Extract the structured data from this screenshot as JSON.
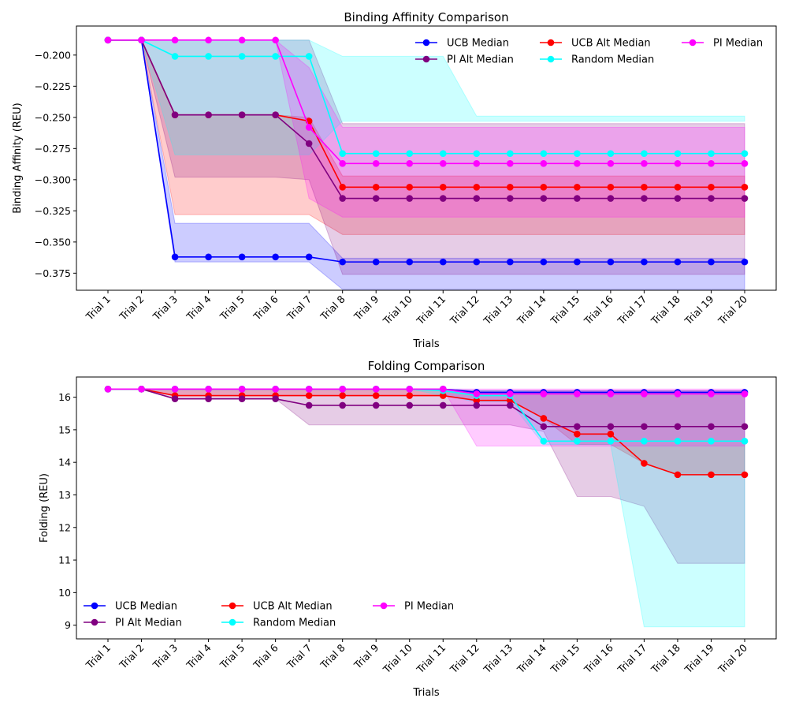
{
  "chart_data": [
    {
      "type": "line",
      "title": "Binding Affinity Comparison",
      "xlabel": "Trials",
      "ylabel": "Binding Affinity (REU)",
      "categories": [
        "Trial 1",
        "Trial 2",
        "Trial 3",
        "Trial 4",
        "Trial 5",
        "Trial 6",
        "Trial 7",
        "Trial 8",
        "Trial 9",
        "Trial 10",
        "Trial 11",
        "Trial 12",
        "Trial 13",
        "Trial 14",
        "Trial 15",
        "Trial 16",
        "Trial 17",
        "Trial 18",
        "Trial 19",
        "Trial 20"
      ],
      "ylim": [
        -0.3887,
        -0.1767
      ],
      "yticks": [
        -0.375,
        -0.35,
        -0.325,
        -0.3,
        -0.275,
        -0.25,
        -0.225,
        -0.2
      ],
      "ytick_labels": [
        "−0.375",
        "−0.350",
        "−0.325",
        "−0.300",
        "−0.275",
        "−0.250",
        "−0.225",
        "−0.200"
      ],
      "legend": {
        "placement": "top-right",
        "columns": 3
      },
      "series": [
        {
          "name": "UCB Median",
          "color": "#0000ff",
          "values": [
            -0.188,
            -0.188,
            -0.362,
            -0.362,
            -0.362,
            -0.362,
            -0.362,
            -0.366,
            -0.366,
            -0.366,
            -0.366,
            -0.366,
            -0.366,
            -0.366,
            -0.366,
            -0.366,
            -0.366,
            -0.366,
            -0.366,
            -0.366
          ],
          "band_low": [
            -0.188,
            -0.188,
            -0.366,
            -0.366,
            -0.366,
            -0.366,
            -0.366,
            -0.388,
            -0.388,
            -0.388,
            -0.388,
            -0.388,
            -0.388,
            -0.388,
            -0.388,
            -0.388,
            -0.388,
            -0.388,
            -0.388,
            -0.388
          ],
          "band_high": [
            -0.188,
            -0.188,
            -0.335,
            -0.335,
            -0.335,
            -0.335,
            -0.335,
            -0.363,
            -0.363,
            -0.363,
            -0.363,
            -0.363,
            -0.363,
            -0.363,
            -0.363,
            -0.363,
            -0.363,
            -0.363,
            -0.363,
            -0.363
          ]
        },
        {
          "name": "UCB Alt Median",
          "color": "#ff0000",
          "values": [
            -0.188,
            -0.188,
            -0.248,
            -0.248,
            -0.248,
            -0.248,
            -0.253,
            -0.306,
            -0.306,
            -0.306,
            -0.306,
            -0.306,
            -0.306,
            -0.306,
            -0.306,
            -0.306,
            -0.306,
            -0.306,
            -0.306,
            -0.306
          ],
          "band_low": [
            -0.188,
            -0.188,
            -0.328,
            -0.328,
            -0.328,
            -0.328,
            -0.328,
            -0.344,
            -0.344,
            -0.344,
            -0.344,
            -0.344,
            -0.344,
            -0.344,
            -0.344,
            -0.344,
            -0.344,
            -0.344,
            -0.344,
            -0.344
          ],
          "band_high": [
            -0.188,
            -0.188,
            -0.248,
            -0.248,
            -0.248,
            -0.248,
            -0.25,
            -0.297,
            -0.297,
            -0.297,
            -0.297,
            -0.297,
            -0.297,
            -0.297,
            -0.297,
            -0.297,
            -0.297,
            -0.297,
            -0.297,
            -0.297
          ]
        },
        {
          "name": "PI Median",
          "color": "#ff00ff",
          "values": [
            -0.188,
            -0.188,
            -0.188,
            -0.188,
            -0.188,
            -0.188,
            -0.258,
            -0.287,
            -0.287,
            -0.287,
            -0.287,
            -0.287,
            -0.287,
            -0.287,
            -0.287,
            -0.287,
            -0.287,
            -0.287,
            -0.287,
            -0.287
          ],
          "band_low": [
            -0.188,
            -0.188,
            -0.188,
            -0.188,
            -0.188,
            -0.188,
            -0.315,
            -0.33,
            -0.33,
            -0.33,
            -0.33,
            -0.33,
            -0.33,
            -0.33,
            -0.33,
            -0.33,
            -0.33,
            -0.33,
            -0.33,
            -0.33
          ],
          "band_high": [
            -0.188,
            -0.188,
            -0.188,
            -0.188,
            -0.188,
            -0.188,
            -0.21,
            -0.258,
            -0.258,
            -0.258,
            -0.258,
            -0.258,
            -0.258,
            -0.258,
            -0.258,
            -0.258,
            -0.258,
            -0.258,
            -0.258,
            -0.258
          ]
        },
        {
          "name": "PI Alt Median",
          "color": "#800080",
          "values": [
            -0.188,
            -0.188,
            -0.248,
            -0.248,
            -0.248,
            -0.248,
            -0.271,
            -0.315,
            -0.315,
            -0.315,
            -0.315,
            -0.315,
            -0.315,
            -0.315,
            -0.315,
            -0.315,
            -0.315,
            -0.315,
            -0.315,
            -0.315
          ],
          "band_low": [
            -0.188,
            -0.188,
            -0.298,
            -0.298,
            -0.298,
            -0.298,
            -0.3,
            -0.376,
            -0.376,
            -0.376,
            -0.376,
            -0.376,
            -0.376,
            -0.376,
            -0.376,
            -0.376,
            -0.376,
            -0.376,
            -0.376,
            -0.376
          ],
          "band_high": [
            -0.188,
            -0.188,
            -0.188,
            -0.188,
            -0.188,
            -0.188,
            -0.188,
            -0.255,
            -0.255,
            -0.255,
            -0.255,
            -0.255,
            -0.255,
            -0.255,
            -0.255,
            -0.255,
            -0.255,
            -0.255,
            -0.255,
            -0.255
          ]
        },
        {
          "name": "Random Median",
          "color": "#00ffff",
          "values": [
            -0.188,
            -0.188,
            -0.201,
            -0.201,
            -0.201,
            -0.201,
            -0.201,
            -0.279,
            -0.279,
            -0.279,
            -0.279,
            -0.279,
            -0.279,
            -0.279,
            -0.279,
            -0.279,
            -0.279,
            -0.279,
            -0.279,
            -0.279
          ],
          "band_low": [
            -0.188,
            -0.188,
            -0.28,
            -0.28,
            -0.28,
            -0.28,
            -0.28,
            -0.253,
            -0.253,
            -0.253,
            -0.253,
            -0.253,
            -0.253,
            -0.253,
            -0.253,
            -0.253,
            -0.253,
            -0.253,
            -0.253,
            -0.253
          ],
          "band_high": [
            -0.188,
            -0.188,
            -0.188,
            -0.188,
            -0.188,
            -0.188,
            -0.188,
            -0.201,
            -0.201,
            -0.201,
            -0.201,
            -0.249,
            -0.249,
            -0.249,
            -0.249,
            -0.249,
            -0.249,
            -0.249,
            -0.249,
            -0.249
          ]
        }
      ]
    },
    {
      "type": "line",
      "title": "Folding Comparison",
      "xlabel": "Trials",
      "ylabel": "Folding (REU)",
      "categories": [
        "Trial 1",
        "Trial 2",
        "Trial 3",
        "Trial 4",
        "Trial 5",
        "Trial 6",
        "Trial 7",
        "Trial 8",
        "Trial 9",
        "Trial 10",
        "Trial 11",
        "Trial 12",
        "Trial 13",
        "Trial 14",
        "Trial 15",
        "Trial 16",
        "Trial 17",
        "Trial 18",
        "Trial 19",
        "Trial 20"
      ],
      "ylim": [
        8.58,
        16.62
      ],
      "yticks": [
        9,
        10,
        11,
        12,
        13,
        14,
        15,
        16
      ],
      "ytick_labels": [
        "9",
        "10",
        "11",
        "12",
        "13",
        "14",
        "15",
        "16"
      ],
      "legend": {
        "placement": "lower-left",
        "columns": 3
      },
      "series": [
        {
          "name": "UCB Median",
          "color": "#0000ff",
          "values": [
            16.25,
            16.25,
            16.25,
            16.25,
            16.25,
            16.25,
            16.25,
            16.25,
            16.25,
            16.25,
            16.25,
            16.15,
            16.15,
            16.15,
            16.15,
            16.15,
            16.15,
            16.15,
            16.15,
            16.15
          ],
          "band_low": [
            16.25,
            16.25,
            16.25,
            16.25,
            16.25,
            16.25,
            16.25,
            16.25,
            16.25,
            16.25,
            16.25,
            16.1,
            16.1,
            16.1,
            16.1,
            16.1,
            16.1,
            16.1,
            16.1,
            16.1
          ],
          "band_high": [
            16.25,
            16.25,
            16.25,
            16.25,
            16.25,
            16.25,
            16.25,
            16.25,
            16.25,
            16.25,
            16.25,
            16.2,
            16.2,
            16.2,
            16.2,
            16.2,
            16.2,
            16.2,
            16.2,
            16.2
          ]
        },
        {
          "name": "UCB Alt Median",
          "color": "#ff0000",
          "values": [
            16.25,
            16.25,
            16.05,
            16.05,
            16.05,
            16.05,
            16.05,
            16.05,
            16.05,
            16.05,
            16.05,
            15.9,
            15.9,
            15.35,
            14.87,
            14.87,
            13.97,
            13.62,
            13.62,
            13.62
          ],
          "band_low": [
            16.25,
            16.25,
            16.05,
            16.05,
            16.05,
            16.05,
            16.05,
            16.05,
            16.05,
            16.05,
            16.05,
            15.9,
            15.9,
            15.35,
            14.55,
            14.55,
            13.97,
            13.62,
            13.62,
            13.62
          ],
          "band_high": [
            16.25,
            16.25,
            16.25,
            16.25,
            16.25,
            16.25,
            16.25,
            16.25,
            16.25,
            16.25,
            16.25,
            16.15,
            16.15,
            16.15,
            16.15,
            16.15,
            16.15,
            16.15,
            16.15,
            16.15
          ]
        },
        {
          "name": "PI Median",
          "color": "#ff00ff",
          "values": [
            16.25,
            16.25,
            16.25,
            16.25,
            16.25,
            16.25,
            16.25,
            16.25,
            16.25,
            16.25,
            16.25,
            16.1,
            16.1,
            16.1,
            16.1,
            16.1,
            16.1,
            16.1,
            16.1,
            16.1
          ],
          "band_low": [
            16.25,
            16.25,
            16.25,
            16.25,
            16.25,
            16.25,
            16.25,
            16.25,
            16.25,
            16.25,
            16.25,
            14.5,
            14.5,
            14.5,
            14.5,
            14.5,
            14.5,
            14.5,
            14.5,
            14.5
          ],
          "band_high": [
            16.25,
            16.25,
            16.25,
            16.25,
            16.25,
            16.25,
            16.25,
            16.25,
            16.25,
            16.25,
            16.25,
            16.25,
            16.25,
            16.25,
            16.25,
            16.25,
            16.25,
            16.25,
            16.25,
            16.25
          ]
        },
        {
          "name": "PI Alt Median",
          "color": "#800080",
          "values": [
            16.25,
            16.25,
            15.95,
            15.95,
            15.95,
            15.95,
            15.75,
            15.75,
            15.75,
            15.75,
            15.75,
            15.75,
            15.75,
            15.1,
            15.1,
            15.1,
            15.1,
            15.1,
            15.1,
            15.1
          ],
          "band_low": [
            16.25,
            16.25,
            15.95,
            15.95,
            15.95,
            15.95,
            15.15,
            15.15,
            15.15,
            15.15,
            15.15,
            15.15,
            15.15,
            14.95,
            12.95,
            12.95,
            12.65,
            10.9,
            10.9,
            10.9
          ],
          "band_high": [
            16.25,
            16.25,
            16.25,
            16.25,
            16.25,
            16.25,
            16.25,
            16.25,
            16.25,
            16.25,
            16.25,
            16.2,
            16.2,
            16.2,
            16.2,
            16.2,
            16.2,
            16.2,
            16.2,
            16.2
          ]
        },
        {
          "name": "Random Median",
          "color": "#00ffff",
          "values": [
            16.25,
            16.25,
            16.25,
            16.25,
            16.25,
            16.25,
            16.25,
            16.25,
            16.25,
            16.25,
            16.2,
            16.05,
            16.05,
            14.65,
            14.65,
            14.65,
            14.65,
            14.65,
            14.65,
            14.65
          ],
          "band_low": [
            16.25,
            16.25,
            16.25,
            16.25,
            16.25,
            16.25,
            16.25,
            16.25,
            16.25,
            16.25,
            16.05,
            15.85,
            15.85,
            14.55,
            14.55,
            14.55,
            8.95,
            8.95,
            8.95,
            8.95
          ],
          "band_high": [
            16.25,
            16.25,
            16.25,
            16.25,
            16.25,
            16.25,
            16.25,
            16.25,
            16.25,
            16.25,
            16.25,
            16.2,
            16.2,
            16.15,
            16.15,
            16.15,
            16.15,
            16.15,
            16.15,
            16.15
          ]
        }
      ]
    }
  ]
}
